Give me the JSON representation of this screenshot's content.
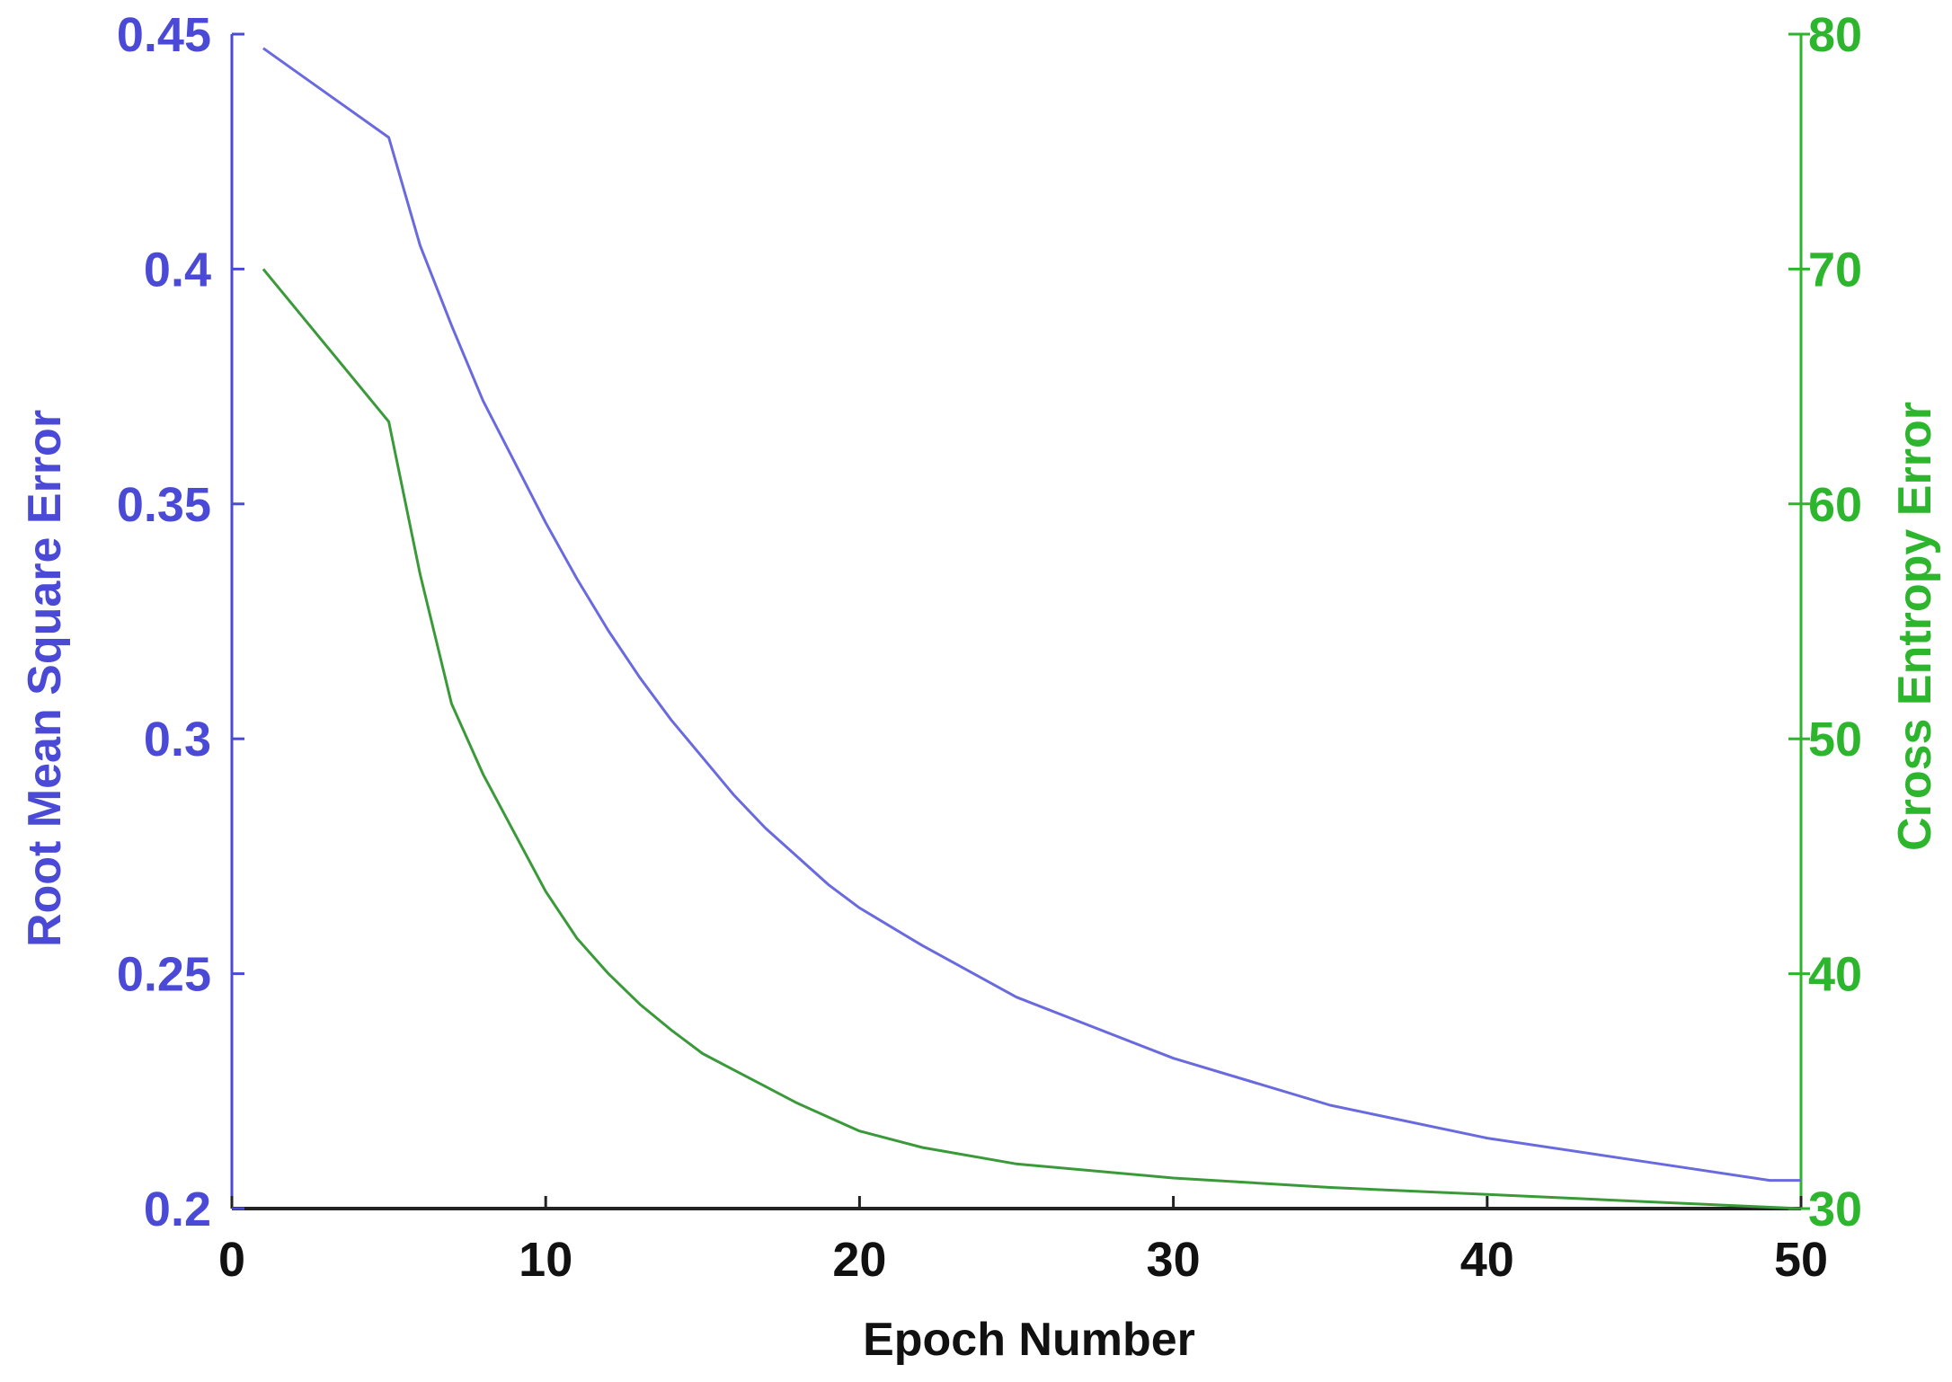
{
  "chart_data": {
    "type": "line",
    "title": "",
    "xlabel": "Epoch Number",
    "ylabel_left": "Root Mean Square Error",
    "ylabel_right": "Cross Entropy Error",
    "xlim": [
      0,
      50
    ],
    "ylim_left": [
      0.2,
      0.45
    ],
    "ylim_right": [
      30,
      80
    ],
    "x_ticks": [
      "0",
      "10",
      "20",
      "30",
      "40",
      "50"
    ],
    "left_ticks": [
      "0.2",
      "0.25",
      "0.3",
      "0.35",
      "0.4",
      "0.45"
    ],
    "right_ticks": [
      "30",
      "40",
      "50",
      "60",
      "70",
      "80"
    ],
    "grid": false,
    "colors": {
      "left_axis": "#4a4ad6",
      "right_axis": "#2db52d",
      "rmse_line": "#6a6ae0",
      "ce_line": "#3a9a3a",
      "x_axis": "#222222"
    },
    "series": [
      {
        "axis": "left",
        "x": [
          1,
          5,
          6,
          7,
          8,
          9,
          10,
          11,
          12,
          13,
          14,
          15,
          16,
          17,
          18,
          19,
          20,
          22,
          25,
          30,
          35,
          40,
          45,
          49,
          50
        ],
        "values": [
          0.447,
          0.428,
          0.405,
          0.388,
          0.372,
          0.359,
          0.346,
          0.334,
          0.323,
          0.313,
          0.304,
          0.296,
          0.288,
          0.281,
          0.275,
          0.269,
          0.264,
          0.256,
          0.245,
          0.232,
          0.222,
          0.215,
          0.21,
          0.206,
          0.206
        ]
      },
      {
        "axis": "right",
        "x": [
          1,
          5,
          6,
          7,
          8,
          9,
          10,
          11,
          12,
          13,
          14,
          15,
          16,
          17,
          18,
          19,
          20,
          22,
          25,
          30,
          35,
          40,
          45,
          50
        ],
        "values": [
          70,
          63.5,
          57,
          51.5,
          48.5,
          46,
          43.5,
          41.5,
          40,
          38.7,
          37.6,
          36.6,
          35.9,
          35.2,
          34.5,
          33.9,
          33.3,
          32.6,
          31.9,
          31.3,
          30.9,
          30.6,
          30.3,
          30
        ]
      }
    ]
  }
}
